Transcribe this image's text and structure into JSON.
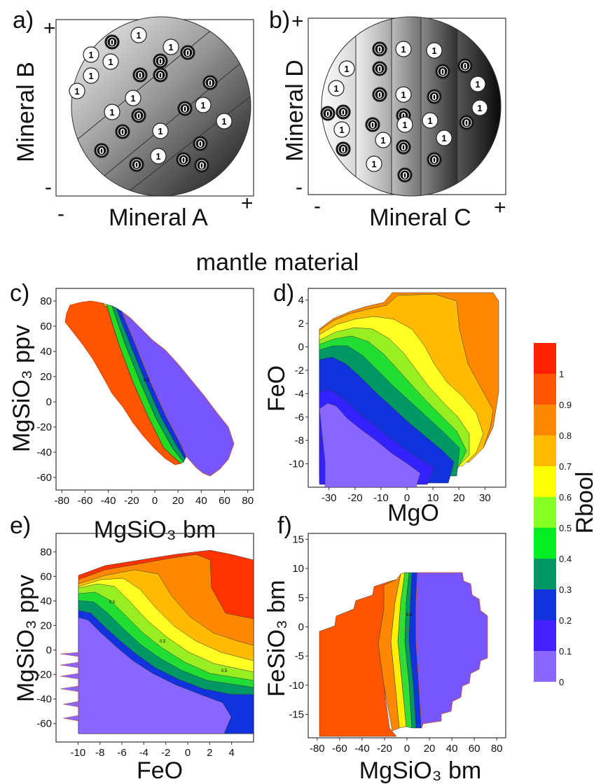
{
  "section_title": "mantle material",
  "panel_a": {
    "letter": "a)",
    "xlabel": "Mineral A",
    "ylabel": "Mineral B",
    "x_minus": "-",
    "x_plus": "+",
    "y_minus": "-",
    "y_plus": "+",
    "values": [
      "0",
      "1",
      "1",
      "1",
      "1",
      "0",
      "1",
      "0",
      "1",
      "0",
      "1",
      "1",
      "0",
      "0",
      "0",
      "1",
      "0",
      "1",
      "0",
      "1",
      "0",
      "0",
      "0",
      "1",
      "0",
      "0"
    ]
  },
  "panel_b": {
    "letter": "b)",
    "xlabel": "Mineral C",
    "ylabel": "Mineral D",
    "x_minus": "-",
    "x_plus": "+",
    "y_minus": "-",
    "y_plus": "+",
    "values": [
      "1",
      "0",
      "0",
      "1",
      "0",
      "1",
      "1",
      "0",
      "1",
      "0",
      "0",
      "0",
      "1",
      "0",
      "0",
      "1",
      "0",
      "1",
      "1",
      "0",
      "1",
      "0",
      "1",
      "1",
      "0",
      "1",
      "0",
      "0"
    ]
  },
  "chart_data": [
    {
      "type": "heatmap",
      "panel": "c)",
      "xlabel": "MgSiO₃ bm",
      "ylabel": "MgSiO₃ ppv",
      "xlim": [
        -85,
        85
      ],
      "ylim": [
        -70,
        90
      ],
      "xticks": [
        "-80",
        "-60",
        "-40",
        "-20",
        "0",
        "20",
        "40",
        "60",
        "80"
      ],
      "yticks": [
        "80",
        "60",
        "40",
        "20",
        "0",
        "-20",
        "-40",
        "-60"
      ],
      "contour_labels": [
        "0.5"
      ]
    },
    {
      "type": "heatmap",
      "panel": "d)",
      "xlabel": "MgO",
      "ylabel": "FeO",
      "xlim": [
        -38,
        38
      ],
      "ylim": [
        -12,
        5
      ],
      "xticks": [
        "-30",
        "-20",
        "-10",
        "0",
        "10",
        "20",
        "30"
      ],
      "yticks": [
        "4",
        "2",
        "0",
        "-2",
        "-4",
        "-6",
        "-8",
        "-10"
      ]
    },
    {
      "type": "heatmap",
      "panel": "e)",
      "xlabel": "FeO",
      "ylabel": "MgSiO₃ ppv",
      "xlim": [
        -12,
        6
      ],
      "ylim": [
        -75,
        95
      ],
      "xticks": [
        "-10",
        "-8",
        "-6",
        "-4",
        "-2",
        "0",
        "2",
        "4"
      ],
      "yticks": [
        "80",
        "60",
        "40",
        "20",
        "0",
        "-20",
        "-40",
        "-60"
      ],
      "contour_labels": [
        "0.5",
        "0.5",
        "0.5"
      ]
    },
    {
      "type": "heatmap",
      "panel": "f)",
      "xlabel": "MgSiO₃ bm",
      "ylabel": "FeSiO₃ bm",
      "xlim": [
        -88,
        88
      ],
      "ylim": [
        -19,
        16
      ],
      "xticks": [
        "-80",
        "-60",
        "-40",
        "-20",
        "0",
        "20",
        "40",
        "60",
        "80"
      ],
      "yticks": [
        "15",
        "10",
        "5",
        "0",
        "-5",
        "-10",
        "-15"
      ],
      "contour_labels": [
        "0.5"
      ]
    }
  ],
  "colorbar": {
    "label": "Rbool",
    "ticks": [
      "1",
      "0.9",
      "0.8",
      "0.7",
      "0.6",
      "0.5",
      "0.4",
      "0.3",
      "0.2",
      "0.1",
      "0"
    ],
    "colors": [
      "#ff2200",
      "#ff5500",
      "#ff8800",
      "#ffbb00",
      "#ffff00",
      "#88ff22",
      "#00ee22",
      "#009966",
      "#1133dd",
      "#4422ff",
      "#8866ff"
    ]
  }
}
